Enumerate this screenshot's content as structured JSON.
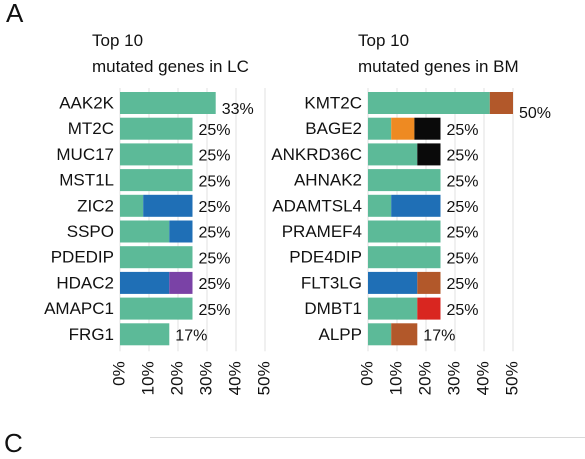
{
  "figure": {
    "panel_label": "A",
    "next_panel_label": "C"
  },
  "colors": {
    "other": "#5cba98",
    "blue": "#1f6fb6",
    "orange": "#ee8a22",
    "black": "#0a0a0a",
    "brown": "#b2582a",
    "red": "#d92620",
    "purple": "#7a42a6",
    "grid": "#e2e2e2"
  },
  "chart_data": [
    {
      "type": "bar",
      "orientation": "horizontal",
      "stacked": true,
      "title": [
        "Top 10",
        "mutated genes in LC"
      ],
      "categories": [
        "AAK2K",
        "MT2C",
        "MUC17",
        "MST1L",
        "ZIC2",
        "SSPO",
        "PDEDIP",
        "HDAC2",
        "AMAPC1",
        "FRG1"
      ],
      "value_labels": [
        "33%",
        "25%",
        "25%",
        "25%",
        "25%",
        "25%",
        "25%",
        "25%",
        "25%",
        "17%"
      ],
      "values": [
        33,
        25,
        25,
        25,
        25,
        25,
        25,
        25,
        25,
        17
      ],
      "segments": [
        [
          {
            "value": 33,
            "color": "other"
          }
        ],
        [
          {
            "value": 25,
            "color": "other"
          }
        ],
        [
          {
            "value": 25,
            "color": "other"
          }
        ],
        [
          {
            "value": 25,
            "color": "other"
          }
        ],
        [
          {
            "value": 8,
            "color": "other"
          },
          {
            "value": 17,
            "color": "blue"
          }
        ],
        [
          {
            "value": 17,
            "color": "other"
          },
          {
            "value": 8,
            "color": "blue"
          }
        ],
        [
          {
            "value": 25,
            "color": "other"
          }
        ],
        [
          {
            "value": 17,
            "color": "blue"
          },
          {
            "value": 8,
            "color": "purple"
          }
        ],
        [
          {
            "value": 25,
            "color": "other"
          }
        ],
        [
          {
            "value": 17,
            "color": "other"
          }
        ]
      ],
      "x_ticks": [
        "0%",
        "10%",
        "20%",
        "30%",
        "40%",
        "50%"
      ],
      "xlim": [
        0,
        50
      ],
      "grid": true
    },
    {
      "type": "bar",
      "orientation": "horizontal",
      "stacked": true,
      "title": [
        "Top 10",
        "mutated genes in BM"
      ],
      "categories": [
        "KMT2C",
        "BAGE2",
        "ANKRD36C",
        "AHNAK2",
        "ADAMTSL4",
        "PRAMEF4",
        "PDE4DIP",
        "FLT3LG",
        "DMBT1",
        "ALPP"
      ],
      "value_labels": [
        "50%",
        "25%",
        "25%",
        "25%",
        "25%",
        "25%",
        "25%",
        "25%",
        "25%",
        "17%"
      ],
      "values": [
        50,
        25,
        25,
        25,
        25,
        25,
        25,
        25,
        25,
        17
      ],
      "segments": [
        [
          {
            "value": 42,
            "color": "other"
          },
          {
            "value": 8,
            "color": "brown"
          }
        ],
        [
          {
            "value": 8,
            "color": "other"
          },
          {
            "value": 8,
            "color": "orange"
          },
          {
            "value": 9,
            "color": "black"
          }
        ],
        [
          {
            "value": 17,
            "color": "other"
          },
          {
            "value": 8,
            "color": "black"
          }
        ],
        [
          {
            "value": 25,
            "color": "other"
          }
        ],
        [
          {
            "value": 8,
            "color": "other"
          },
          {
            "value": 17,
            "color": "blue"
          }
        ],
        [
          {
            "value": 25,
            "color": "other"
          }
        ],
        [
          {
            "value": 25,
            "color": "other"
          }
        ],
        [
          {
            "value": 17,
            "color": "blue"
          },
          {
            "value": 8,
            "color": "brown"
          }
        ],
        [
          {
            "value": 17,
            "color": "other"
          },
          {
            "value": 8,
            "color": "red"
          }
        ],
        [
          {
            "value": 8,
            "color": "other"
          },
          {
            "value": 9,
            "color": "brown"
          }
        ]
      ],
      "x_ticks": [
        "0%",
        "10%",
        "20%",
        "30%",
        "40%",
        "50%"
      ],
      "xlim": [
        0,
        50
      ],
      "grid": true
    }
  ]
}
